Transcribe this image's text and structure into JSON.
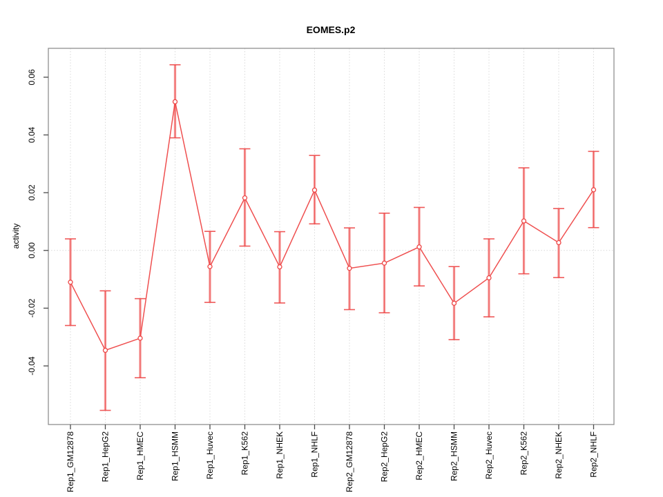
{
  "chart_data": {
    "type": "line",
    "title": "EOMES.p2",
    "ylabel": "activity",
    "xlabel": "",
    "legend": "none",
    "grid": "dotted vertical line at each category; dotted horizontal line at zero",
    "categories": [
      "Rep1_GM12878",
      "Rep1_HepG2",
      "Rep1_HMEC",
      "Rep1_HSMM",
      "Rep1_Huvec",
      "Rep1_K562",
      "Rep1_NHEK",
      "Rep1_NHLF",
      "Rep2_GM12878",
      "Rep2_HepG2",
      "Rep2_HMEC",
      "Rep2_HSMM",
      "Rep2_Huvec",
      "Rep2_K562",
      "Rep2_NHEK",
      "Rep2_NHLF"
    ],
    "values": [
      -0.011,
      -0.0346,
      -0.0304,
      0.0515,
      -0.0056,
      0.0182,
      -0.0057,
      0.0209,
      -0.0062,
      -0.0044,
      0.0012,
      -0.0183,
      -0.0095,
      0.0102,
      0.0027,
      0.021
    ],
    "ci_low": [
      -0.026,
      -0.0554,
      -0.0441,
      0.039,
      -0.018,
      0.0015,
      -0.0182,
      0.0092,
      -0.0205,
      -0.0216,
      -0.0123,
      -0.0309,
      -0.023,
      -0.0081,
      -0.0094,
      0.0079
    ],
    "ci_high": [
      0.004,
      -0.014,
      -0.0167,
      0.0643,
      0.0066,
      0.0352,
      0.0065,
      0.0329,
      0.0078,
      0.0129,
      0.0149,
      -0.0056,
      0.004,
      0.0286,
      0.0145,
      0.0343
    ],
    "yticks": [
      {
        "value": -0.04,
        "label": "-0.04"
      },
      {
        "value": -0.02,
        "label": "-0.02"
      },
      {
        "value": 0.0,
        "label": "0.00"
      },
      {
        "value": 0.02,
        "label": "0.02"
      },
      {
        "value": 0.04,
        "label": "0.04"
      },
      {
        "value": 0.06,
        "label": "0.06"
      }
    ],
    "ylim": [
      -0.0603,
      0.07
    ],
    "colors": {
      "series": "#ee4646",
      "band": "#f6a9a9",
      "grid": "#d8d8d8",
      "box": "#8f8f8f",
      "tick": "#4a4a4a",
      "text": "#000000"
    }
  }
}
